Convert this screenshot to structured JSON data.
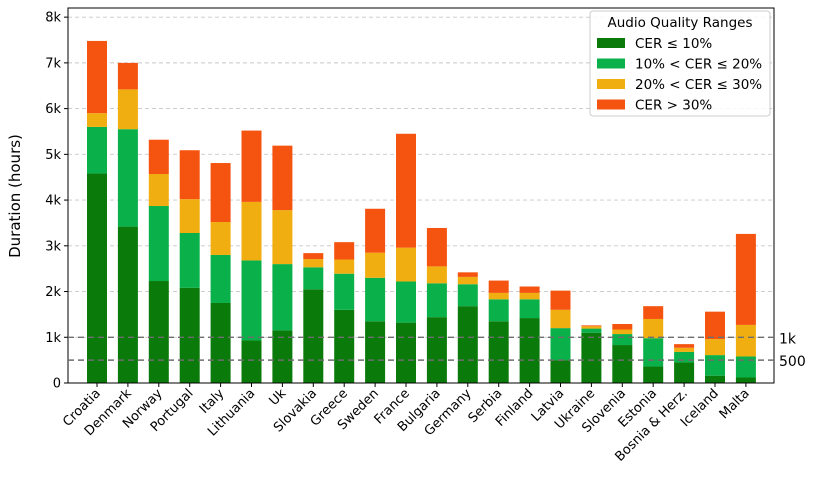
{
  "chart_data": {
    "type": "bar",
    "stacked": true,
    "title": "",
    "xlabel": "",
    "ylabel": "Duration (hours)",
    "ylim": [
      0,
      8200
    ],
    "yticks": [
      0,
      1000,
      2000,
      3000,
      4000,
      5000,
      6000,
      7000,
      8000
    ],
    "ytick_labels": [
      "0",
      "1k",
      "2k",
      "3k",
      "4k",
      "5k",
      "6k",
      "7k",
      "8k"
    ],
    "grid": true,
    "categories": [
      "Croatia",
      "Denmark",
      "Norway",
      "Portugal",
      "Italy",
      "Lithuania",
      "Uk",
      "Slovakia",
      "Greece",
      "Sweden",
      "France",
      "Bulgaria",
      "Germany",
      "Serbia",
      "Finland",
      "Latvia",
      "Ukraine",
      "Slovenia",
      "Estonia",
      "Bosnia & Herz.",
      "Iceland",
      "Malta"
    ],
    "legend": {
      "title": "Audio Quality Ranges",
      "position": "top-right"
    },
    "series": [
      {
        "name": "CER ≤ 10%",
        "color": "#0a7a0a",
        "values": [
          4580,
          3420,
          2230,
          2080,
          1750,
          930,
          1150,
          2050,
          1600,
          1350,
          1320,
          1440,
          1680,
          1350,
          1420,
          500,
          1100,
          830,
          360,
          450,
          160,
          120
        ]
      },
      {
        "name": "10% < CER ≤ 20%",
        "color": "#0ab04a",
        "values": [
          1020,
          2130,
          1640,
          1200,
          1050,
          1750,
          1450,
          480,
          790,
          950,
          900,
          740,
          480,
          480,
          410,
          700,
          90,
          240,
          620,
          230,
          450,
          460
        ]
      },
      {
        "name": "20% < CER ≤ 30%",
        "color": "#f0ae10",
        "values": [
          300,
          870,
          700,
          740,
          720,
          1280,
          1180,
          180,
          310,
          550,
          740,
          370,
          160,
          140,
          140,
          400,
          50,
          100,
          420,
          90,
          350,
          690
        ]
      },
      {
        "name": "CER > 30%",
        "color": "#f55410",
        "values": [
          1580,
          580,
          750,
          1070,
          1290,
          1560,
          1410,
          130,
          380,
          960,
          2490,
          840,
          100,
          270,
          140,
          420,
          20,
          120,
          280,
          80,
          600,
          1990
        ]
      }
    ],
    "reference_lines": [
      {
        "value": 1000,
        "label": "1k"
      },
      {
        "value": 500,
        "label": "500"
      }
    ]
  }
}
